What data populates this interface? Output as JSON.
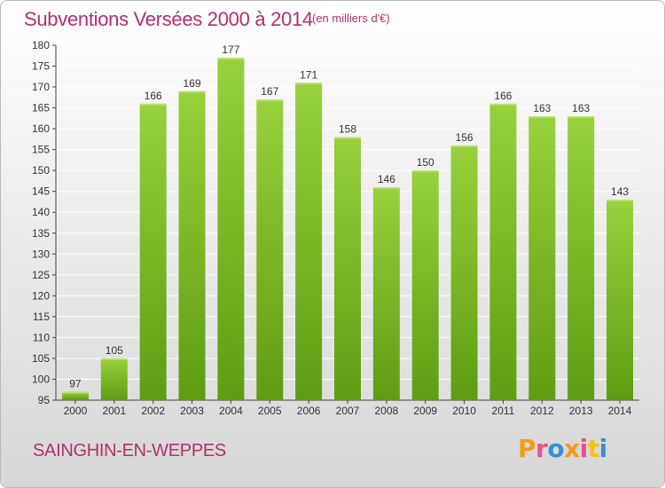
{
  "header": {
    "title": "Subventions Versées 2000 à 2014",
    "unit": "(en milliers d'€)"
  },
  "footer": {
    "commune": "SAINGHIN-EN-WEPPES",
    "logo": "Proxiti",
    "logo_colors": [
      "#f39a1e",
      "#e8528b",
      "#3b8fd0",
      "#f39a1e",
      "#e8528b",
      "#f0c419",
      "#3b8fd0"
    ]
  },
  "colors": {
    "title": "#b0306e",
    "bar_light": "#98d13c",
    "bar_dark": "#5f9c12",
    "grid": "#ffffff"
  },
  "chart_data": {
    "type": "bar",
    "title": "Subventions Versées 2000 à 2014",
    "xlabel": "",
    "ylabel": "",
    "ylim": [
      95,
      180
    ],
    "ytick_step": 5,
    "grid": true,
    "categories": [
      "2000",
      "2001",
      "2002",
      "2003",
      "2004",
      "2005",
      "2006",
      "2007",
      "2008",
      "2009",
      "2010",
      "2011",
      "2012",
      "2013",
      "2014"
    ],
    "values": [
      97,
      105,
      166,
      169,
      177,
      167,
      171,
      158,
      146,
      150,
      156,
      166,
      163,
      163,
      143
    ]
  }
}
